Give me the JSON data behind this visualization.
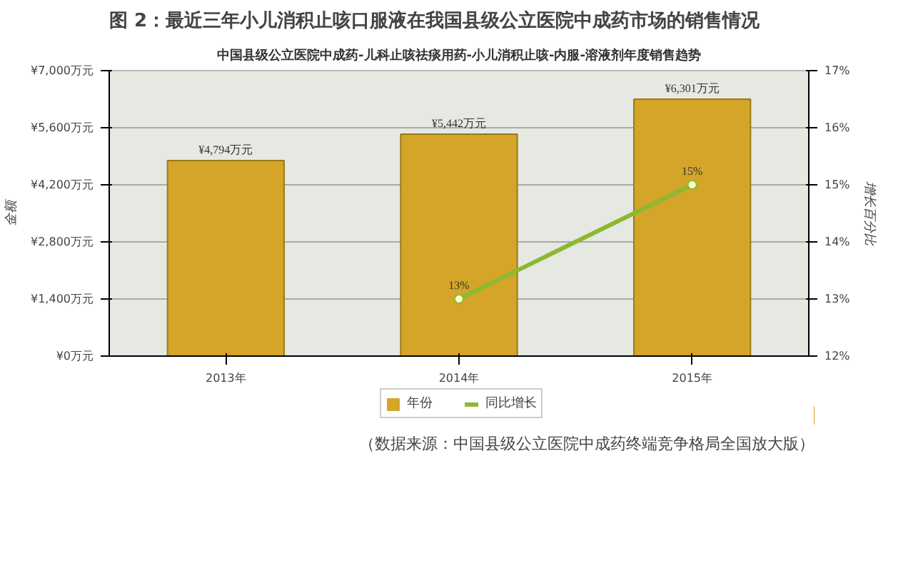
{
  "chart_data": {
    "type": "bar",
    "title": "图 2：最近三年小儿消积止咳口服液在我国县级公立医院中成药市场的销售情况",
    "subtitle": "中国县级公立医院中成药-儿科止咳祛痰用药-小儿消积止咳-内服-溶液剂年度销售趋势",
    "ylabel": "金额",
    "y2label": "增长百分比",
    "categories": [
      "2013年",
      "2014年",
      "2015年"
    ],
    "series": [
      {
        "name": "年份",
        "color": "#d4a528",
        "values": [
          4794,
          5442,
          6301
        ],
        "value_labels": [
          "¥4,794万元",
          "¥5,442万元",
          "¥6,301万元"
        ]
      },
      {
        "name": "同比增长",
        "type": "line",
        "axis": "y2",
        "color": "#8db832",
        "marker": "circle",
        "values": [
          null,
          13,
          15
        ],
        "value_labels": [
          null,
          "13%",
          "15%"
        ]
      }
    ],
    "ylim": [
      0,
      7000
    ],
    "yticks": [
      {
        "value": 0,
        "label": "¥0万元"
      },
      {
        "value": 1400,
        "label": "¥1,400万元"
      },
      {
        "value": 2800,
        "label": "¥2,800万元"
      },
      {
        "value": 4200,
        "label": "¥4,200万元"
      },
      {
        "value": 5600,
        "label": "¥5,600万元"
      },
      {
        "value": 7000,
        "label": "¥7,000万元"
      }
    ],
    "y2lim": [
      12,
      17
    ],
    "y2ticks": [
      {
        "value": 12,
        "label": "12%"
      },
      {
        "value": 13,
        "label": "13%"
      },
      {
        "value": 14,
        "label": "14%"
      },
      {
        "value": 15,
        "label": "15%"
      },
      {
        "value": 16,
        "label": "16%"
      },
      {
        "value": 17,
        "label": "17%"
      }
    ],
    "grid": "y",
    "legend": "bottom",
    "annotations": [
      "（数据来源：中国县级公立医院中成药终端竞争格局全国放大版）"
    ]
  }
}
